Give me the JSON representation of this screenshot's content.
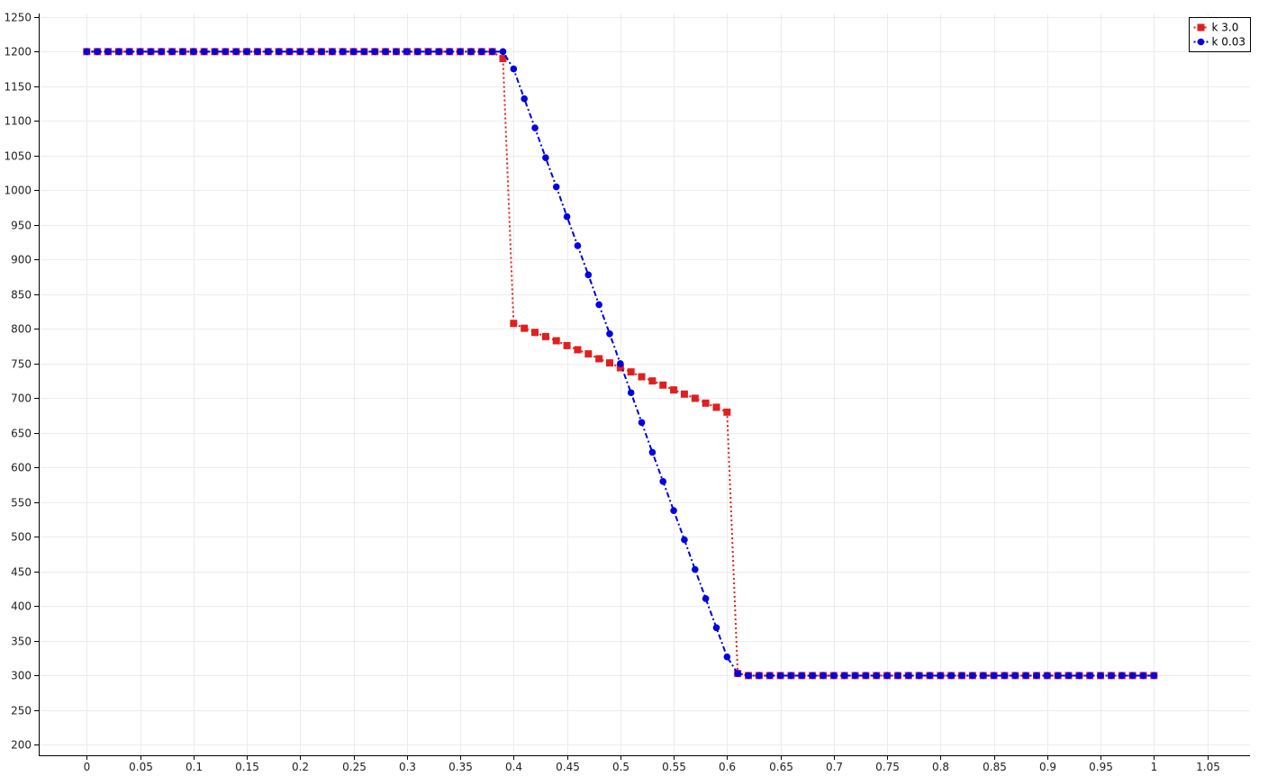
{
  "chart_data": {
    "type": "line",
    "title": "",
    "xlabel": "",
    "ylabel": "",
    "xlim": [
      -0.045,
      1.09
    ],
    "ylim": [
      185,
      1255
    ],
    "x_ticks": [
      "0",
      "0.05",
      "0.1",
      "0.15",
      "0.2",
      "0.25",
      "0.3",
      "0.35",
      "0.4",
      "0.45",
      "0.5",
      "0.55",
      "0.6",
      "0.65",
      "0.7",
      "0.75",
      "0.8",
      "0.85",
      "0.9",
      "0.95",
      "1",
      "1.05"
    ],
    "y_ticks": [
      "200",
      "250",
      "300",
      "350",
      "400",
      "450",
      "500",
      "550",
      "600",
      "650",
      "700",
      "750",
      "800",
      "850",
      "900",
      "950",
      "1000",
      "1050",
      "1100",
      "1150",
      "1200",
      "1250"
    ],
    "grid": true,
    "legend_position": "top-right",
    "x": [
      0,
      0.01,
      0.02,
      0.03,
      0.04,
      0.05,
      0.06,
      0.07,
      0.08,
      0.09,
      0.1,
      0.11,
      0.12,
      0.13,
      0.14,
      0.15,
      0.16,
      0.17,
      0.18,
      0.19,
      0.2,
      0.21,
      0.22,
      0.23,
      0.24,
      0.25,
      0.26,
      0.27,
      0.28,
      0.29,
      0.3,
      0.31,
      0.32,
      0.33,
      0.34,
      0.35,
      0.36,
      0.37,
      0.38,
      0.39,
      0.4,
      0.41,
      0.42,
      0.43,
      0.44,
      0.45,
      0.46,
      0.47,
      0.48,
      0.49,
      0.5,
      0.51,
      0.52,
      0.53,
      0.54,
      0.55,
      0.56,
      0.57,
      0.58,
      0.59,
      0.6,
      0.61,
      0.62,
      0.63,
      0.64,
      0.65,
      0.66,
      0.67,
      0.68,
      0.69,
      0.7,
      0.71,
      0.72,
      0.73,
      0.74,
      0.75,
      0.76,
      0.77,
      0.78,
      0.79,
      0.8,
      0.81,
      0.82,
      0.83,
      0.84,
      0.85,
      0.86,
      0.87,
      0.88,
      0.89,
      0.9,
      0.91,
      0.92,
      0.93,
      0.94,
      0.95,
      0.96,
      0.97,
      0.98,
      0.99,
      1
    ],
    "series": [
      {
        "name": "k 3.0",
        "color": "#e02020",
        "marker": "square",
        "values": [
          1200,
          1200,
          1200,
          1200,
          1200,
          1200,
          1200,
          1200,
          1200,
          1200,
          1200,
          1200,
          1200,
          1200,
          1200,
          1200,
          1200,
          1200,
          1200,
          1200,
          1200,
          1200,
          1200,
          1200,
          1200,
          1200,
          1200,
          1200,
          1200,
          1200,
          1200,
          1200,
          1200,
          1200,
          1200,
          1200,
          1200,
          1200,
          1200,
          1190,
          808,
          801,
          795,
          789,
          783,
          776,
          770,
          764,
          757,
          751,
          744,
          738,
          731,
          725,
          719,
          712,
          706,
          700,
          693,
          687,
          680,
          303,
          300,
          300,
          300,
          300,
          300,
          300,
          300,
          300,
          300,
          300,
          300,
          300,
          300,
          300,
          300,
          300,
          300,
          300,
          300,
          300,
          300,
          300,
          300,
          300,
          300,
          300,
          300,
          300,
          300,
          300,
          300,
          300,
          300,
          300,
          300,
          300,
          300,
          300,
          300
        ]
      },
      {
        "name": "k 0.03",
        "color": "#0000e0",
        "marker": "circle",
        "values": [
          1200,
          1200,
          1200,
          1200,
          1200,
          1200,
          1200,
          1200,
          1200,
          1200,
          1200,
          1200,
          1200,
          1200,
          1200,
          1200,
          1200,
          1200,
          1200,
          1200,
          1200,
          1200,
          1200,
          1200,
          1200,
          1200,
          1200,
          1200,
          1200,
          1200,
          1200,
          1200,
          1200,
          1200,
          1200,
          1200,
          1200,
          1200,
          1200,
          1200,
          1175,
          1132,
          1090,
          1047,
          1005,
          962,
          920,
          878,
          835,
          793,
          750,
          708,
          665,
          622,
          580,
          538,
          496,
          453,
          411,
          369,
          327,
          303,
          300,
          300,
          300,
          300,
          300,
          300,
          300,
          300,
          300,
          300,
          300,
          300,
          300,
          300,
          300,
          300,
          300,
          300,
          300,
          300,
          300,
          300,
          300,
          300,
          300,
          300,
          300,
          300,
          300,
          300,
          300,
          300,
          300,
          300,
          300,
          300,
          300,
          300,
          300
        ]
      }
    ]
  }
}
